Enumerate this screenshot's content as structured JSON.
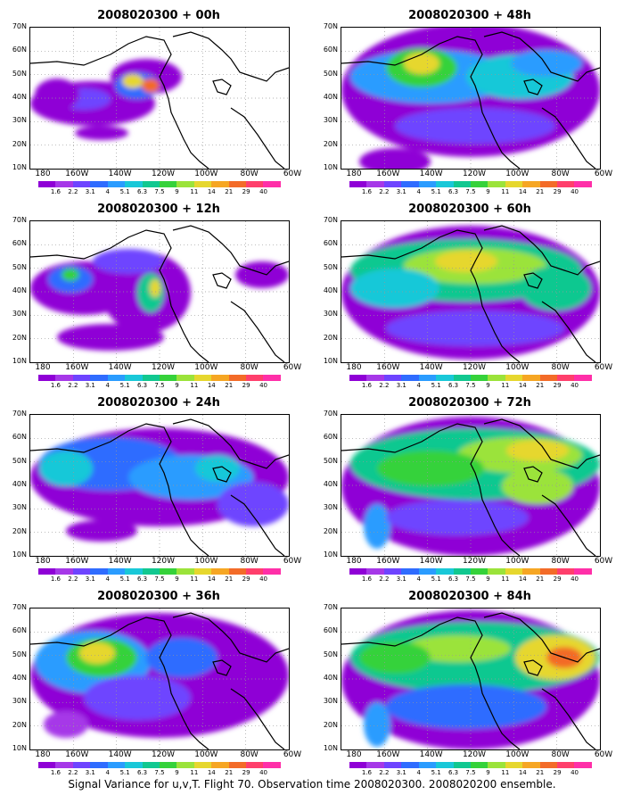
{
  "panels": [
    {
      "title": "2008020300 + 00h"
    },
    {
      "title": "2008020300 + 12h"
    },
    {
      "title": "2008020300 + 24h"
    },
    {
      "title": "2008020300 + 36h"
    },
    {
      "title": "2008020300 + 48h"
    },
    {
      "title": "2008020300 + 60h"
    },
    {
      "title": "2008020300 + 72h"
    },
    {
      "title": "2008020300 + 84h"
    }
  ],
  "lat_labels": [
    "70N",
    "60N",
    "50N",
    "40N",
    "30N",
    "20N",
    "10N"
  ],
  "lon_labels": [
    "180",
    "160W",
    "140W",
    "120W",
    "100W",
    "80W",
    "60W"
  ],
  "colorbar": {
    "labels": [
      "1.6",
      "2.2",
      "3.1",
      "4",
      "5.1",
      "6.3",
      "7.5",
      "9",
      "11",
      "14",
      "21",
      "29",
      "40"
    ],
    "colors": [
      "#8f00d6",
      "#a638e8",
      "#6e44ff",
      "#2f6cff",
      "#2a9cff",
      "#19c8d8",
      "#11c890",
      "#35d23a",
      "#9be33a",
      "#e6d72e",
      "#f6a623",
      "#f36b28",
      "#ff3f6c",
      "#ff2fa8"
    ]
  },
  "caption": "Signal Variance for u,v,T. Flight 70. Observation time 2008020300. 2008020200 ensemble."
}
